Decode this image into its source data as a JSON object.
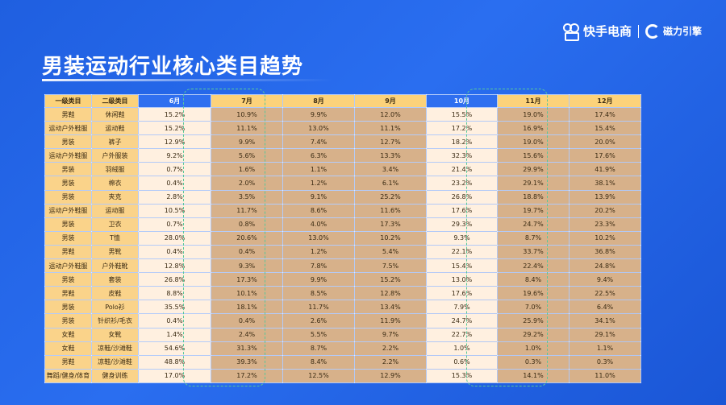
{
  "page": {
    "title": "男装运动行业核心类目趋势"
  },
  "brand": {
    "name": "快手电商",
    "sub": "磁力引擎"
  },
  "table": {
    "headers": [
      "一级类目",
      "二级类目",
      "6月",
      "7月",
      "8月",
      "9月",
      "10月",
      "11月",
      "12月"
    ],
    "highlight_months": [
      "6月",
      "10月"
    ],
    "rows": [
      [
        "男鞋",
        "休闲鞋",
        "15.2%",
        "10.9%",
        "9.9%",
        "12.0%",
        "15.5%",
        "19.0%",
        "17.4%"
      ],
      [
        "运动户外鞋服",
        "运动鞋",
        "15.2%",
        "11.1%",
        "13.0%",
        "11.1%",
        "17.2%",
        "16.9%",
        "15.4%"
      ],
      [
        "男装",
        "裤子",
        "12.9%",
        "9.9%",
        "7.4%",
        "12.7%",
        "18.2%",
        "19.0%",
        "20.0%"
      ],
      [
        "运动户外鞋服",
        "户外服装",
        "9.2%",
        "5.6%",
        "6.3%",
        "13.3%",
        "32.3%",
        "15.6%",
        "17.6%"
      ],
      [
        "男装",
        "羽绒服",
        "0.7%",
        "1.6%",
        "1.1%",
        "3.4%",
        "21.4%",
        "29.9%",
        "41.9%"
      ],
      [
        "男装",
        "棉衣",
        "0.4%",
        "2.0%",
        "1.2%",
        "6.1%",
        "23.2%",
        "29.1%",
        "38.1%"
      ],
      [
        "男装",
        "夹克",
        "2.8%",
        "3.5%",
        "9.1%",
        "25.2%",
        "26.8%",
        "18.8%",
        "13.9%"
      ],
      [
        "运动户外鞋服",
        "运动服",
        "10.5%",
        "11.7%",
        "8.6%",
        "11.6%",
        "17.6%",
        "19.7%",
        "20.2%"
      ],
      [
        "男装",
        "卫衣",
        "0.7%",
        "0.8%",
        "4.0%",
        "17.3%",
        "29.3%",
        "24.7%",
        "23.3%"
      ],
      [
        "男装",
        "T恤",
        "28.0%",
        "20.6%",
        "13.0%",
        "10.2%",
        "9.3%",
        "8.7%",
        "10.2%"
      ],
      [
        "男鞋",
        "男靴",
        "0.4%",
        "0.4%",
        "1.2%",
        "5.4%",
        "22.1%",
        "33.7%",
        "36.8%"
      ],
      [
        "运动户外鞋服",
        "户外鞋靴",
        "12.8%",
        "9.3%",
        "7.8%",
        "7.5%",
        "15.4%",
        "22.4%",
        "24.8%"
      ],
      [
        "男装",
        "套装",
        "26.8%",
        "17.3%",
        "9.9%",
        "15.2%",
        "13.0%",
        "8.4%",
        "9.4%"
      ],
      [
        "男鞋",
        "皮鞋",
        "8.8%",
        "10.1%",
        "8.5%",
        "12.8%",
        "17.6%",
        "19.6%",
        "22.5%"
      ],
      [
        "男装",
        "Polo衫",
        "35.5%",
        "18.1%",
        "11.7%",
        "13.4%",
        "7.9%",
        "7.0%",
        "6.4%"
      ],
      [
        "男装",
        "针织衫/毛衣",
        "0.4%",
        "0.4%",
        "2.6%",
        "11.9%",
        "24.7%",
        "25.9%",
        "34.1%"
      ],
      [
        "女鞋",
        "女靴",
        "1.4%",
        "2.4%",
        "5.5%",
        "9.7%",
        "22.7%",
        "29.2%",
        "29.1%"
      ],
      [
        "女鞋",
        "凉鞋/沙滩鞋",
        "54.6%",
        "31.3%",
        "8.7%",
        "2.2%",
        "1.0%",
        "1.0%",
        "1.1%"
      ],
      [
        "男鞋",
        "凉鞋/沙滩鞋",
        "48.8%",
        "39.3%",
        "8.4%",
        "2.2%",
        "0.6%",
        "0.3%",
        "0.3%"
      ],
      [
        "舞蹈/健身/体育",
        "健身训练",
        "17.0%",
        "17.2%",
        "12.5%",
        "12.9%",
        "15.3%",
        "14.1%",
        "11.0%"
      ]
    ]
  },
  "colors": {
    "background": "#2a6ef0",
    "header": "#fcd27a",
    "header_highlight": "#2f6ff0",
    "highlight_cell": "#fff0e0",
    "value_cell": "#d7b18a",
    "dash_outline": "#58c79a"
  }
}
